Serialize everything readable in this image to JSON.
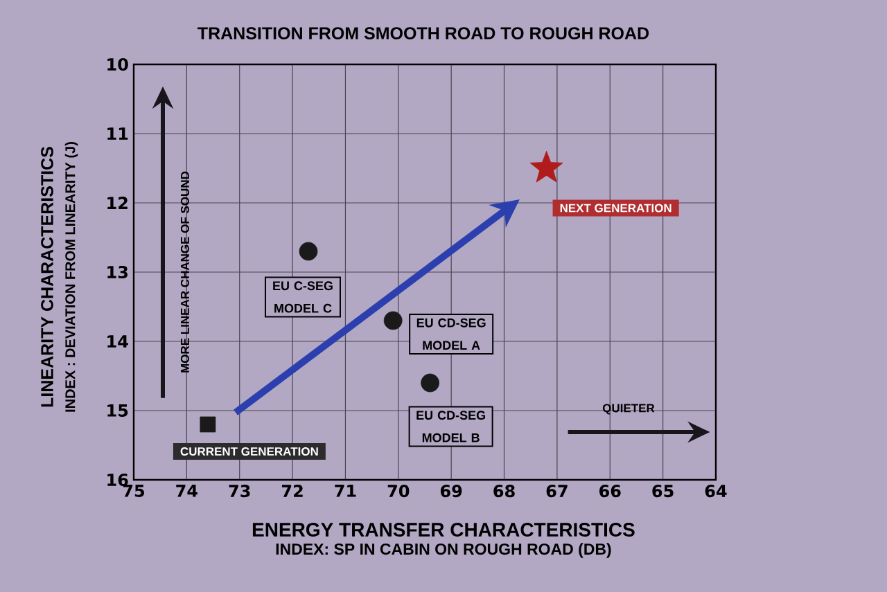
{
  "chart_data": {
    "type": "scatter",
    "title": "TRANSITION FROM SMOOTH ROAD TO ROUGH ROAD",
    "xlabel": "ENERGY TRANSFER CHARACTERISTICS",
    "ylabel": "LINEARITY CHARACTERISTICS",
    "series": [
      {
        "name": "CURRENT GENERATION",
        "color": "#1a1a1a",
        "marker": "square",
        "x": [
          73.6
        ],
        "values": [
          15.2
        ]
      },
      {
        "name": "EU C-SEG MODEL C",
        "color": "#1a1a1a",
        "marker": "circle",
        "x": [
          71.7
        ],
        "values": [
          12.7
        ]
      },
      {
        "name": "EU CD-SEG MODEL A",
        "color": "#1a1a1a",
        "marker": "circle",
        "x": [
          70.1
        ],
        "values": [
          13.7
        ]
      },
      {
        "name": "EU CD-SEG MODEL B",
        "color": "#1a1a1a",
        "marker": "circle",
        "x": [
          69.4
        ],
        "values": [
          14.6
        ]
      },
      {
        "name": "NEXT GENERATION",
        "color": "#b01c1c",
        "marker": "star",
        "x": [
          67.2
        ],
        "values": [
          11.5
        ]
      }
    ],
    "xlim": [
      75,
      64
    ],
    "ylim": [
      16,
      10
    ],
    "xticks": [
      75,
      74,
      73,
      72,
      71,
      70,
      69,
      68,
      67,
      66,
      65,
      64
    ],
    "yticks": [
      10,
      11,
      12,
      13,
      14,
      15,
      16
    ],
    "grid": true,
    "annotations": [
      "MORE LINEAR CHANGE OF SOUND",
      "QUIETER",
      "INDEX: SP IN CABIN ON ROUGH ROAD (DB)",
      "INDEX : DEVIATION FROM LINEARITY (J)"
    ]
  }
}
